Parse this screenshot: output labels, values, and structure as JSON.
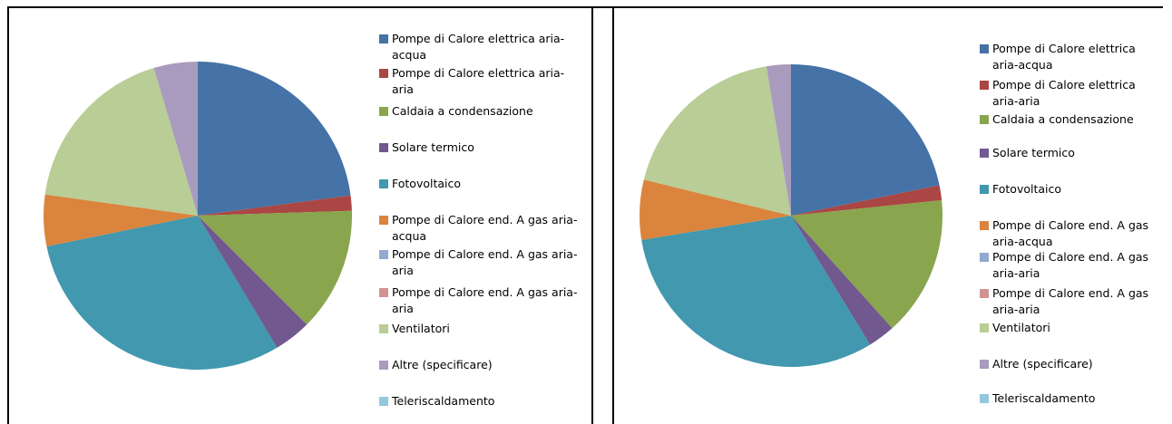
{
  "chart_data": [
    {
      "type": "pie",
      "categories": [
        "Pompe di Calore elettrica aria-acqua",
        "Pompe di Calore elettrica aria-aria",
        "Caldaia a condensazione",
        "Solare termico",
        "Fotovoltaico",
        "Pompe di Calore end. A gas aria-acqua",
        "Pompe di Calore end. A gas aria-aria",
        "Pompe di Calore end. A gas aria-aria",
        "Ventilatori",
        "Altre  (specificare)",
        "Teleriscaldamento"
      ],
      "values": [
        22.9,
        1.6,
        13.0,
        3.9,
        30.4,
        5.4,
        0,
        0,
        18.2,
        4.6,
        0
      ],
      "colors": [
        "#4572a7",
        "#aa4643",
        "#89a54e",
        "#71588f",
        "#4198af",
        "#db843d",
        "#93a9cf",
        "#d19392",
        "#b9cd96",
        "#a99bbd",
        "#92c8de"
      ]
    },
    {
      "type": "pie",
      "categories": [
        "Pompe di Calore elettrica aria-acqua",
        "Pompe di Calore elettrica aria-aria",
        "Caldaia a condensazione",
        "Solare termico",
        "Fotovoltaico",
        "Pompe di Calore end. A gas aria-acqua",
        "Pompe di Calore end. A gas aria-aria",
        "Pompe di Calore end. A gas aria-aria",
        "Ventilatori",
        "Altre  (specificare)",
        "Teleriscaldamento"
      ],
      "values": [
        21.8,
        1.6,
        15.0,
        2.9,
        31.2,
        6.4,
        0,
        0,
        18.6,
        2.6,
        0
      ],
      "colors": [
        "#4572a7",
        "#aa4643",
        "#89a54e",
        "#71588f",
        "#4198af",
        "#db843d",
        "#93a9cf",
        "#d19392",
        "#b9cd96",
        "#a99bbd",
        "#92c8de"
      ]
    }
  ]
}
